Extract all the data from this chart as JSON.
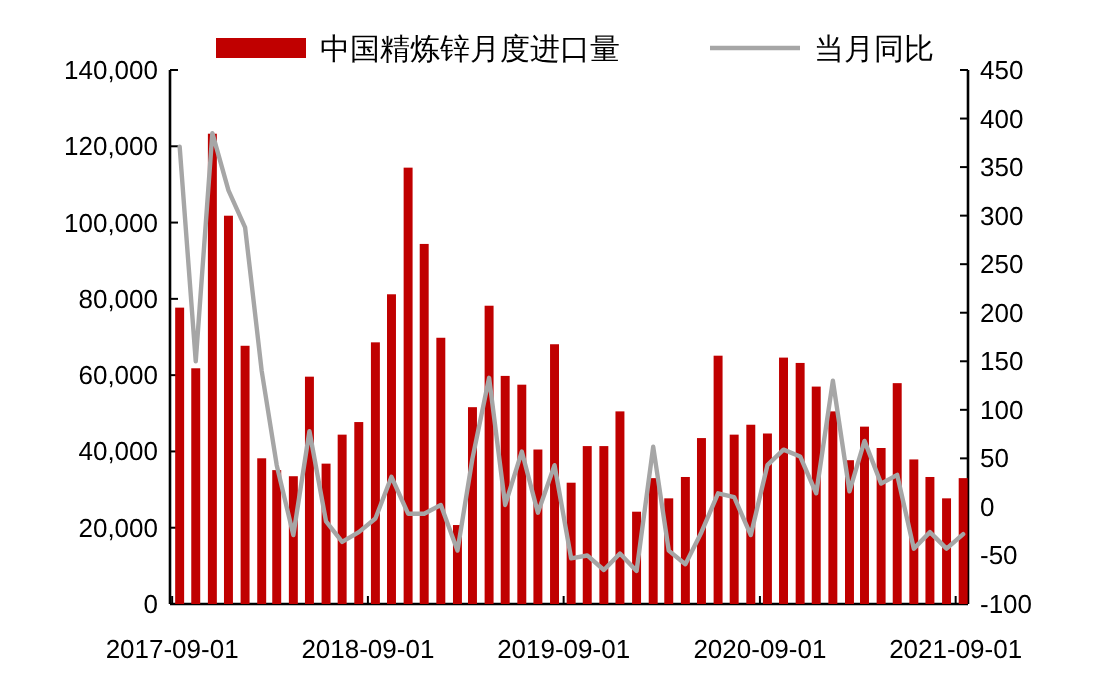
{
  "chart_data": {
    "type": "bar",
    "legend": "top",
    "grid": false,
    "x": [
      "2017-09-15",
      "2017-10-15",
      "2017-11-15",
      "2017-12-15",
      "2018-01-15",
      "2018-02-15",
      "2018-03-15",
      "2018-04-15",
      "2018-05-15",
      "2018-06-15",
      "2018-07-15",
      "2018-08-15",
      "2018-09-15",
      "2018-10-15",
      "2018-11-15",
      "2018-12-15",
      "2019-01-15",
      "2019-02-15",
      "2019-03-15",
      "2019-04-15",
      "2019-05-15",
      "2019-06-15",
      "2019-07-15",
      "2019-08-15",
      "2019-09-15",
      "2019-10-15",
      "2019-11-15",
      "2019-12-15",
      "2020-01-15",
      "2020-02-15",
      "2020-03-15",
      "2020-04-15",
      "2020-05-15",
      "2020-06-15",
      "2020-07-15",
      "2020-08-15",
      "2020-09-15",
      "2020-10-15",
      "2020-11-15",
      "2020-12-15",
      "2021-01-15",
      "2021-02-15",
      "2021-03-15",
      "2021-04-15",
      "2021-05-15",
      "2021-06-15",
      "2021-07-15",
      "2021-08-15",
      "2021-09-15"
    ],
    "xlim": [
      "2017-08-28",
      "2021-09-24"
    ],
    "xticks": [
      {
        "value": "2017-09-01",
        "label": "2017-09-01"
      },
      {
        "value": "2018-09-01",
        "label": "2018-09-01"
      },
      {
        "value": "2019-09-01",
        "label": "2019-09-01"
      },
      {
        "value": "2020-09-01",
        "label": "2020-09-01"
      },
      {
        "value": "2021-09-01",
        "label": "2021-09-01"
      }
    ],
    "ylim": [
      0,
      140000
    ],
    "yticks": [
      {
        "value": 0,
        "label": "0"
      },
      {
        "value": 20000,
        "label": "20,000"
      },
      {
        "value": 40000,
        "label": "40,000"
      },
      {
        "value": 60000,
        "label": "60,000"
      },
      {
        "value": 80000,
        "label": "80,000"
      },
      {
        "value": 100000,
        "label": "100,000"
      },
      {
        "value": 120000,
        "label": "120,000"
      },
      {
        "value": 140000,
        "label": "140,000"
      }
    ],
    "y2lim": [
      -100,
      450
    ],
    "y2ticks": [
      -100,
      -50,
      0,
      50,
      100,
      150,
      200,
      250,
      300,
      350,
      400,
      450
    ],
    "series": [
      {
        "name": "中国精炼锌月度进口量",
        "color": "#c00000",
        "values": [
          77700,
          61800,
          123300,
          101800,
          67700,
          38200,
          35100,
          33500,
          59600,
          36800,
          44400,
          47700,
          68600,
          81200,
          114400,
          94400,
          69800,
          20700,
          51600,
          78200,
          59800,
          57500,
          40500,
          68100,
          31800,
          41400,
          41400,
          50500,
          24200,
          33000,
          27700,
          33300,
          43500,
          65100,
          44400,
          47000,
          44700,
          64600,
          63200,
          57000,
          50500,
          37700,
          46500,
          40900,
          57900,
          37900,
          33300,
          27700,
          33000
        ]
      },
      {
        "name": "当月同比",
        "type": "line",
        "axis": "y2",
        "color": "#a6a6a6",
        "values": [
          371,
          150,
          385,
          326,
          288,
          140,
          43,
          -29,
          78,
          -15,
          -36,
          -26,
          -12,
          31,
          -7,
          -7,
          2,
          -45,
          50,
          133,
          2,
          57,
          -6,
          43,
          -53,
          -50,
          -65,
          -48,
          -66,
          62,
          -45,
          -59,
          -26,
          14,
          10,
          -29,
          43,
          59,
          52,
          14,
          130,
          16,
          68,
          24,
          33,
          -43,
          -26,
          -43,
          -28
        ]
      }
    ]
  }
}
